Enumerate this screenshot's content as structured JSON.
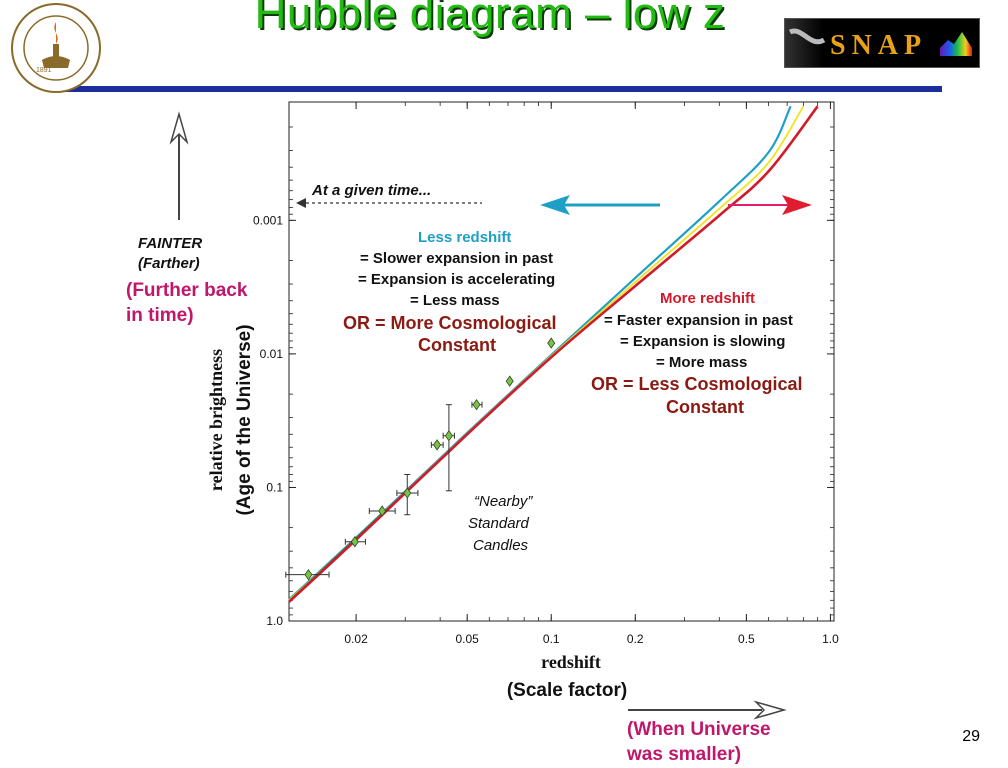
{
  "slide": {
    "title": "Hubble diagram – low z",
    "page_number": "29",
    "colors": {
      "title": "#22bb11",
      "rule": "#1c2e9a",
      "magenta": "#c0176a",
      "brown": "#8a1a12",
      "cyan": "#1e9fc6",
      "red": "#e01d2e"
    }
  },
  "logos": {
    "left": "caltech-seal",
    "right_text": "SNAP"
  },
  "labels": {
    "fainter": "FAINTER",
    "farther": "(Farther)",
    "further_back_1": "(Further back",
    "further_back_2": "in time)",
    "age_axis": "(Age of the Universe)",
    "scale_factor": "(Scale factor)",
    "when_smaller_1": "(When Universe",
    "when_smaller_2": "was smaller)",
    "given_time": "At a given time...",
    "less_title": "Less redshift",
    "less_1": "= Slower expansion in past",
    "less_2": "= Expansion is accelerating",
    "less_3": "= Less mass",
    "less_or_1": "OR = More Cosmological",
    "less_or_2": "Constant",
    "more_title": "More redshift",
    "more_1": "= Faster expansion in past",
    "more_2": "= Expansion is slowing",
    "more_3": "= More mass",
    "more_or_1": "OR = Less Cosmological",
    "more_or_2": "Constant",
    "nearby_1": "“Nearby”",
    "nearby_2": "Standard",
    "nearby_3": "Candles"
  },
  "chart_data": {
    "type": "scatter",
    "title": "",
    "xlabel": "redshift",
    "ylabel": "relative brightness",
    "x_scale": "log",
    "y_scale": "log",
    "y_inverted": true,
    "xlim": [
      0.0115,
      1.03
    ],
    "ylim": [
      1.0,
      0.00013
    ],
    "x_ticks": [
      {
        "v": 0.02,
        "label": "0.02"
      },
      {
        "v": 0.05,
        "label": "0.05"
      },
      {
        "v": 0.1,
        "label": "0.1"
      },
      {
        "v": 0.2,
        "label": "0.2"
      },
      {
        "v": 0.5,
        "label": "0.5"
      },
      {
        "v": 1.0,
        "label": "1.0"
      }
    ],
    "y_ticks": [
      {
        "v": 0.001,
        "label": "0.001"
      },
      {
        "v": 0.01,
        "label": "0.01"
      },
      {
        "v": 0.1,
        "label": "0.1"
      },
      {
        "v": 1.0,
        "label": "1.0"
      }
    ],
    "series": [
      {
        "color": "#1e9fc6",
        "x": [
          0.0115,
          0.02,
          0.05,
          0.1,
          0.2,
          0.4,
          0.6,
          0.72
        ],
        "y": [
          0.69,
          0.238,
          0.039,
          0.0102,
          0.0027,
          0.00072,
          0.00031,
          0.00014
        ]
      },
      {
        "color": "#f2e21a",
        "x": [
          0.0115,
          0.02,
          0.05,
          0.1,
          0.2,
          0.4,
          0.6,
          0.8
        ],
        "y": [
          0.7,
          0.242,
          0.0395,
          0.0104,
          0.0029,
          0.00082,
          0.00037,
          0.00014
        ]
      },
      {
        "color": "#1e8a2a",
        "x": [
          0.0115,
          0.05,
          0.1
        ],
        "y": [
          0.71,
          0.04,
          0.0106
        ]
      },
      {
        "color": "#d11a2a",
        "x": [
          0.0115,
          0.02,
          0.05,
          0.1,
          0.2,
          0.4,
          0.6,
          0.9
        ],
        "y": [
          0.72,
          0.246,
          0.04,
          0.0106,
          0.0031,
          0.00092,
          0.00043,
          0.00014
        ]
      }
    ],
    "points": [
      {
        "x": 0.0135,
        "y": 0.45,
        "xerr": [
          0.0023,
          0.0025
        ],
        "yerr": [
          0.0,
          0.0
        ]
      },
      {
        "x": 0.0198,
        "y": 0.255,
        "xerr": [
          0.0015,
          0.0018
        ],
        "yerr": [
          0.0,
          0.0
        ]
      },
      {
        "x": 0.0248,
        "y": 0.15,
        "xerr": [
          0.0025,
          0.0028
        ],
        "yerr": [
          0.0,
          0.0
        ]
      },
      {
        "x": 0.0305,
        "y": 0.11,
        "xerr": [
          0.0025,
          0.0028
        ],
        "yerr": [
          0.05,
          0.03
        ]
      },
      {
        "x": 0.039,
        "y": 0.048,
        "xerr": [
          0.0018,
          0.002
        ],
        "yerr": [
          0.0,
          0.0
        ]
      },
      {
        "x": 0.043,
        "y": 0.041,
        "xerr": [
          0.002,
          0.002
        ],
        "yerr": [
          0.065,
          0.017
        ]
      },
      {
        "x": 0.054,
        "y": 0.024,
        "xerr": [
          0.002,
          0.0025
        ],
        "yerr": [
          0.0,
          0.0
        ]
      },
      {
        "x": 0.071,
        "y": 0.016,
        "xerr": [
          0.0,
          0.0
        ],
        "yerr": [
          0.0,
          0.0
        ]
      },
      {
        "x": 0.1,
        "y": 0.0083,
        "xerr": [
          0.0,
          0.0
        ],
        "yerr": [
          0.0,
          0.0
        ]
      }
    ]
  }
}
